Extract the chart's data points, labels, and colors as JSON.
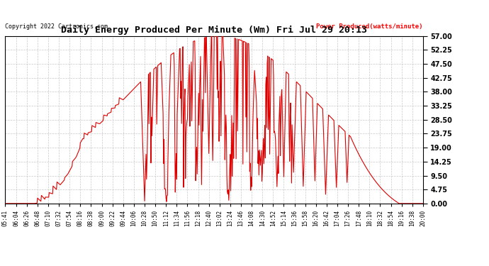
{
  "title": "Daily Energy Produced Per Minute (Wm) Fri Jul 29 20:13",
  "copyright": "Copyright 2022 Cartronics.com",
  "legend_label": "Power Produced(watts/minute)",
  "ylabel_values": [
    0.0,
    4.75,
    9.5,
    14.25,
    19.0,
    23.75,
    28.5,
    33.25,
    38.0,
    42.75,
    47.5,
    52.25,
    57.0
  ],
  "ymax": 57.0,
  "ymin": 0.0,
  "line_color": "#DD0000",
  "background_color": "#FFFFFF",
  "grid_color": "#BBBBBB",
  "title_color": "#000000",
  "copyright_color": "#000000",
  "legend_color": "#FF0000",
  "tick_label_color": "#000000",
  "x_tick_labels": [
    "05:41",
    "06:04",
    "06:26",
    "06:48",
    "07:10",
    "07:32",
    "07:54",
    "08:16",
    "08:38",
    "09:00",
    "09:22",
    "09:44",
    "10:06",
    "10:28",
    "10:50",
    "11:12",
    "11:34",
    "11:56",
    "12:18",
    "12:40",
    "13:02",
    "13:24",
    "13:46",
    "14:08",
    "14:30",
    "14:52",
    "15:14",
    "15:36",
    "15:58",
    "16:20",
    "16:42",
    "17:04",
    "17:26",
    "17:48",
    "18:10",
    "18:32",
    "18:54",
    "19:16",
    "19:38",
    "20:00"
  ]
}
